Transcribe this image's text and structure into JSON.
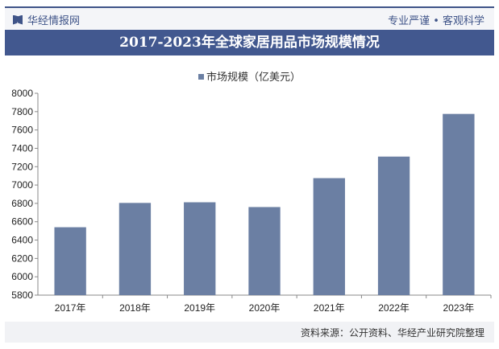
{
  "header": {
    "brand": "华经情报网",
    "slogan": "专业严谨 • 客观科学",
    "brand_icon": "book-logo-icon"
  },
  "title": "2017-2023年全球家居用品市场规模情况",
  "footer": {
    "source": "资料来源：公开资料、华经产业研究院整理"
  },
  "colors": {
    "bar": "#6b7fa3",
    "title_bg": "#42588f"
  },
  "chart_data": {
    "type": "bar",
    "title": "2017-2023年全球家居用品市场规模情况",
    "categories": [
      "2017年",
      "2018年",
      "2019年",
      "2020年",
      "2021年",
      "2022年",
      "2023年"
    ],
    "series": [
      {
        "name": "市场规模（亿美元）",
        "values": [
          6540,
          6805,
          6812,
          6760,
          7075,
          7310,
          7775
        ]
      }
    ],
    "ylim": [
      5800,
      8000
    ],
    "yticks": [
      5800,
      6000,
      6200,
      6400,
      6600,
      6800,
      7000,
      7200,
      7400,
      7600,
      7800,
      8000
    ],
    "grid": false,
    "legend": "top"
  }
}
